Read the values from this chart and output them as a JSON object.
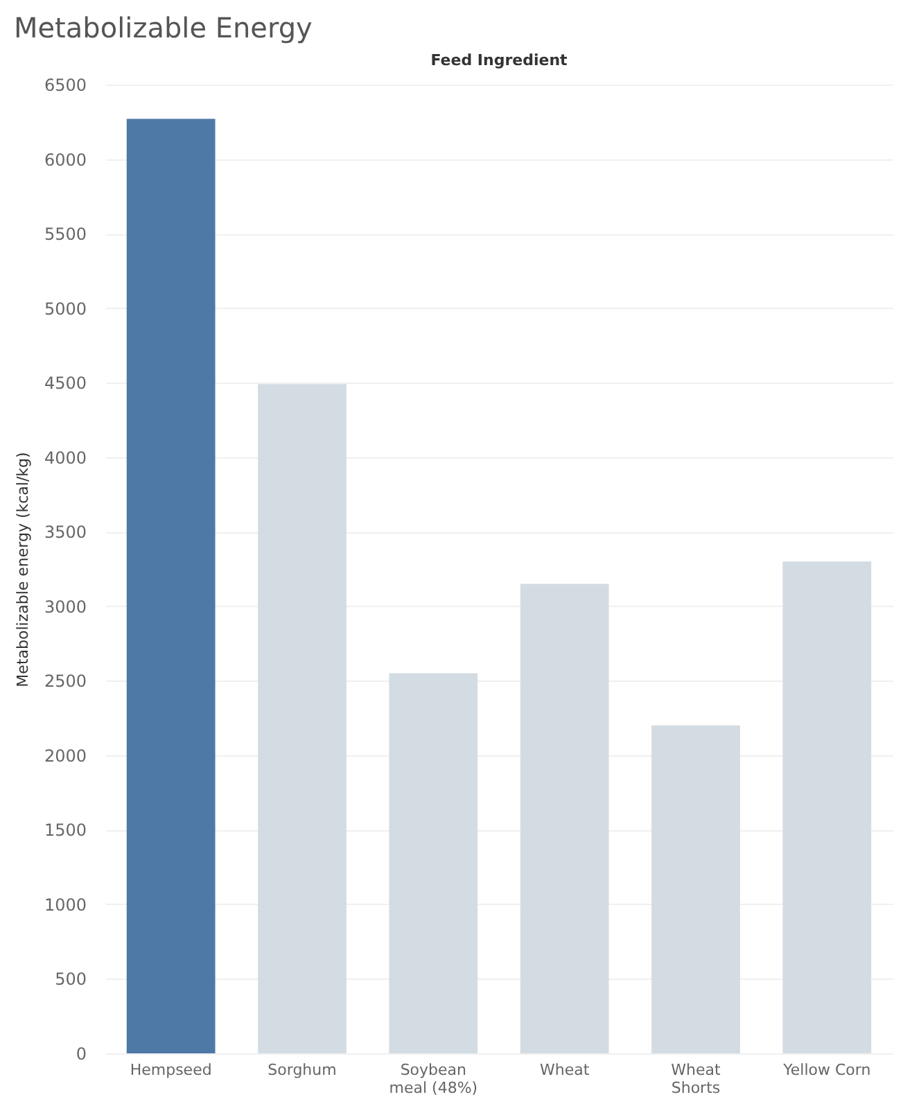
{
  "chart_data": {
    "type": "bar",
    "title": "Metabolizable Energy",
    "xlabel": "Feed Ingredient",
    "ylabel": "Metabolizable energy (kcal/kg)",
    "categories": [
      "Hempseed",
      "Sorghum",
      "Soybean meal (48%)",
      "Wheat",
      "Wheat Shorts",
      "Yellow Corn"
    ],
    "values": [
      6270,
      4490,
      2550,
      3150,
      2200,
      3300
    ],
    "colors": [
      "#4e79a7",
      "#d4dce3",
      "#d4dce3",
      "#d4dce3",
      "#d4dce3",
      "#d4dce3"
    ],
    "ylim": [
      0,
      6500
    ],
    "yticks": [
      0,
      500,
      1000,
      1500,
      2000,
      2500,
      3000,
      3500,
      4000,
      4500,
      5000,
      5500,
      6000,
      6500
    ],
    "grid": "y",
    "legend": false
  }
}
